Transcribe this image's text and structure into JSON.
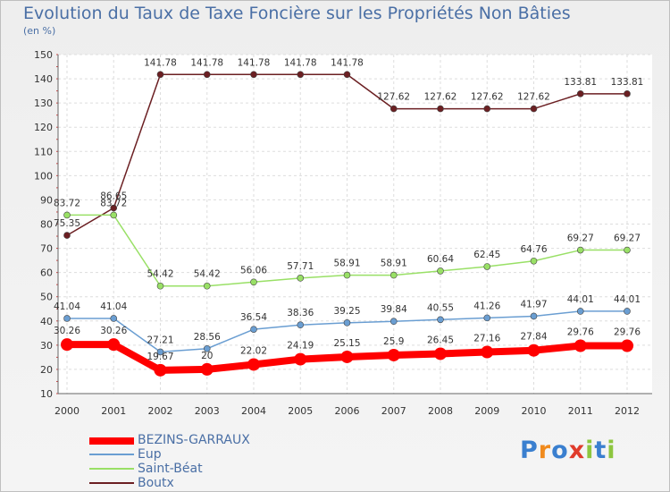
{
  "chart_data": {
    "type": "line",
    "title": "Evolution du Taux de Taxe Foncière sur les Propriétés Non Bâties",
    "ylabel": "(en %)",
    "xlabel": "",
    "ylim": [
      10,
      150
    ],
    "yticks": [
      10,
      20,
      30,
      40,
      50,
      60,
      70,
      80,
      90,
      100,
      110,
      120,
      130,
      140,
      150
    ],
    "categories": [
      "2000",
      "2001",
      "2002",
      "2003",
      "2004",
      "2005",
      "2006",
      "2007",
      "2008",
      "2009",
      "2010",
      "2011",
      "2012"
    ],
    "series": [
      {
        "name": "Boutx",
        "color": "#6b1f22",
        "values": [
          75.35,
          86.65,
          141.78,
          141.78,
          141.78,
          141.78,
          141.78,
          127.62,
          127.62,
          127.62,
          127.62,
          133.81,
          133.81
        ],
        "labels": [
          "75.35",
          "86.65",
          "141.78",
          "141.78",
          "141.78",
          "141.78",
          "141.78",
          "127.62",
          "127.62",
          "127.62",
          "127.62",
          "133.81",
          "133.81"
        ]
      },
      {
        "name": "Saint-Béat",
        "color": "#99e066",
        "values": [
          83.72,
          83.72,
          54.42,
          54.42,
          56.06,
          57.71,
          58.91,
          58.91,
          60.64,
          62.45,
          64.76,
          69.27,
          69.27
        ],
        "labels": [
          "83.72",
          "83.72",
          "54.42",
          "54.42",
          "56.06",
          "57.71",
          "58.91",
          "58.91",
          "60.64",
          "62.45",
          "64.76",
          "69.27",
          "69.27"
        ]
      },
      {
        "name": "Eup",
        "color": "#6a9ed2",
        "values": [
          41.04,
          41.04,
          27.21,
          28.56,
          36.54,
          38.36,
          39.25,
          39.84,
          40.55,
          41.26,
          41.97,
          44.01,
          44.01
        ],
        "labels": [
          "41.04",
          "41.04",
          "27.21",
          "28.56",
          "36.54",
          "38.36",
          "39.25",
          "39.84",
          "40.55",
          "41.26",
          "41.97",
          "44.01",
          "44.01"
        ]
      },
      {
        "name": "BEZINS-GARRAUX",
        "color": "#ff0000",
        "values": [
          30.26,
          30.26,
          19.67,
          20,
          22.02,
          24.19,
          25.15,
          25.9,
          26.45,
          27.16,
          27.84,
          29.76,
          29.76
        ],
        "labels": [
          "30.26",
          "30.26",
          "19.67",
          "20",
          "22.02",
          "24.19",
          "25.15",
          "25.9",
          "26.45",
          "27.16",
          "27.84",
          "29.76",
          "29.76"
        ]
      }
    ],
    "legend": [
      {
        "name": "BEZINS-GARRAUX",
        "color": "#ff0000"
      },
      {
        "name": "Eup",
        "color": "#6a9ed2"
      },
      {
        "name": "Saint-Béat",
        "color": "#99e066"
      },
      {
        "name": "Boutx",
        "color": "#6b1f22"
      }
    ]
  },
  "logo": {
    "letters": [
      "P",
      "r",
      "o",
      "x",
      "i",
      "t",
      "i"
    ],
    "colors": [
      "#3a7fcf",
      "#f08a1c",
      "#3a7fcf",
      "#e03b2b",
      "#8dc63f",
      "#3a7fcf",
      "#8dc63f"
    ]
  }
}
